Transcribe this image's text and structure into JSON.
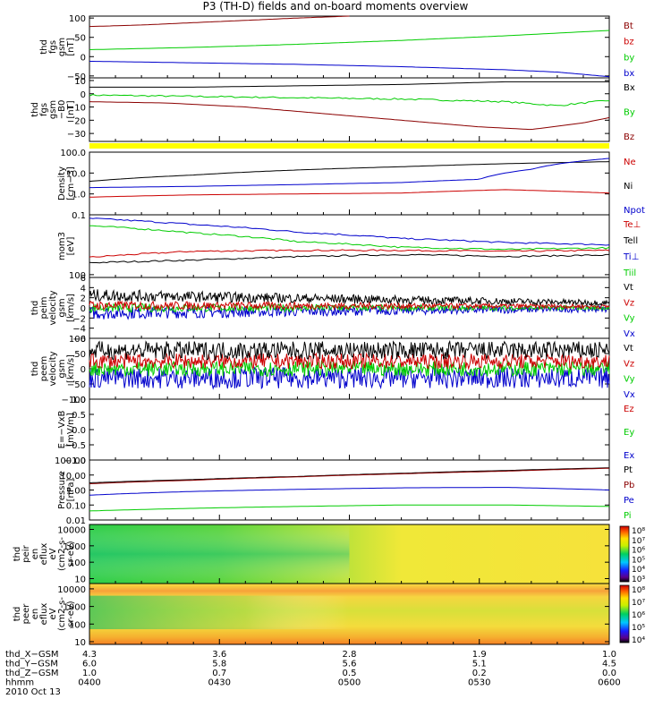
{
  "title": "P3 (TH-D) fields and on-board moments overview",
  "colors": {
    "black": "#000000",
    "red": "#cc0000",
    "darkred": "#8b0000",
    "green": "#00cc00",
    "blue": "#0000cc",
    "yellow": "#ffff00"
  },
  "chart_data": [
    {
      "type": "line",
      "id": "p1",
      "ylabel": [
        "thd",
        "fgs",
        "gsm",
        "[nT]"
      ],
      "ylim": [
        -55,
        105
      ],
      "ticks": [
        "100",
        "50",
        "0",
        "−50"
      ],
      "tickvals": [
        100,
        50,
        0,
        -50
      ],
      "series": [
        {
          "name": "Bt",
          "color": "#8b0000",
          "x": [
            0,
            0.1,
            0.2,
            0.3,
            0.4,
            0.5
          ],
          "values": [
            78,
            82,
            88,
            94,
            100,
            105
          ]
        },
        {
          "name": "bz",
          "color": "#cc0000",
          "x": [],
          "values": []
        },
        {
          "name": "by",
          "color": "#00cc00",
          "x": [
            0,
            0.2,
            0.4,
            0.6,
            0.8,
            1.0
          ],
          "values": [
            18,
            24,
            32,
            42,
            54,
            68
          ]
        },
        {
          "name": "bx",
          "color": "#0000cc",
          "x": [
            0,
            0.2,
            0.4,
            0.6,
            0.8,
            0.9,
            1.0
          ],
          "values": [
            -12,
            -16,
            -20,
            -26,
            -34,
            -40,
            -52
          ]
        }
      ]
    },
    {
      "type": "line",
      "id": "p2",
      "ylabel": [
        "thd",
        "fgs",
        "gsm",
        "−B0",
        "[nT]"
      ],
      "ylim": [
        -36,
        12
      ],
      "ticks": [
        "10",
        "0",
        "−10",
        "−20",
        "−30"
      ],
      "tickvals": [
        10,
        0,
        -10,
        -20,
        -30
      ],
      "series": [
        {
          "name": "Bx",
          "color": "#000000",
          "x": [
            0,
            0.2,
            0.4,
            0.6,
            0.8,
            1.0
          ],
          "values": [
            5,
            5,
            6,
            7,
            9,
            9
          ]
        },
        {
          "name": "By",
          "color": "#00cc00",
          "x": [
            0,
            0.2,
            0.4,
            0.6,
            0.8,
            0.9,
            1.0
          ],
          "values": [
            -1,
            -2,
            -3,
            -4,
            -6,
            -9,
            -5
          ]
        },
        {
          "name": "Bz",
          "color": "#8b0000",
          "x": [
            0,
            0.15,
            0.3,
            0.45,
            0.6,
            0.75,
            0.85,
            0.95,
            1.0
          ],
          "values": [
            -6,
            -7,
            -10,
            -15,
            -20,
            -25,
            -27,
            -22,
            -18
          ]
        }
      ]
    },
    {
      "type": "line",
      "id": "p3",
      "ylabel": [
        "Density",
        "[cm−3]"
      ],
      "log": true,
      "ylim": [
        0.1,
        100
      ],
      "ticks": [
        "100.0",
        "10.0",
        "1.0",
        "0.1"
      ],
      "tickvals": [
        100,
        10,
        1,
        0.1
      ],
      "series": [
        {
          "name": "Ne",
          "color": "#cc0000",
          "x": [
            0,
            0.2,
            0.4,
            0.6,
            0.8,
            1.0
          ],
          "values": [
            0.7,
            0.9,
            1.0,
            1.1,
            1.6,
            1.1
          ]
        },
        {
          "name": "Ni",
          "color": "#000000",
          "x": [
            0,
            0.2,
            0.4,
            0.6,
            0.8,
            1.0
          ],
          "values": [
            4,
            8,
            14,
            20,
            28,
            35
          ]
        },
        {
          "name": "Npot",
          "color": "#0000cc",
          "x": [
            0,
            0.2,
            0.4,
            0.6,
            0.75,
            0.85,
            1.0
          ],
          "values": [
            2,
            2.3,
            2.8,
            3.5,
            5,
            15,
            50
          ]
        }
      ]
    },
    {
      "type": "line",
      "id": "p4",
      "ylabel": [
        "mom3",
        "[eV]"
      ],
      "log": true,
      "ylim": [
        80,
        12000
      ],
      "ticks": [
        "100"
      ],
      "tickvals": [
        100
      ],
      "series": [
        {
          "name": "Te⊥",
          "color": "#cc0000",
          "x": [
            0,
            0.2,
            0.4,
            0.6,
            0.8,
            1.0
          ],
          "values": [
            400,
            650,
            700,
            700,
            650,
            700
          ]
        },
        {
          "name": "Tell",
          "color": "#000000",
          "x": [
            0,
            0.2,
            0.4,
            0.6,
            0.8,
            1.0
          ],
          "values": [
            260,
            320,
            420,
            500,
            430,
            480
          ]
        },
        {
          "name": "Ti⊥",
          "color": "#0000cc",
          "x": [
            0,
            0.2,
            0.4,
            0.6,
            0.8,
            1.0
          ],
          "values": [
            9000,
            5500,
            3000,
            1800,
            1300,
            1100
          ]
        },
        {
          "name": "Tiil",
          "color": "#00cc00",
          "x": [
            0,
            0.2,
            0.4,
            0.6,
            0.8,
            1.0
          ],
          "values": [
            5000,
            2800,
            1400,
            900,
            750,
            850
          ]
        }
      ]
    },
    {
      "type": "line",
      "id": "p5",
      "ylabel": [
        "thd",
        "peim",
        "velocity",
        "gsm",
        "[km/s]"
      ],
      "ylim": [
        -6,
        6
      ],
      "ticks": [
        "6",
        "4",
        "2",
        "0",
        "−2",
        "−4",
        "−6"
      ],
      "tickvals": [
        6,
        4,
        2,
        0,
        -2,
        -4,
        -6
      ],
      "series": [
        {
          "name": "Vt",
          "color": "#000000",
          "x": [
            0,
            1
          ],
          "values": [
            2.5,
            1
          ]
        },
        {
          "name": "Vz",
          "color": "#cc0000",
          "x": [
            0,
            1
          ],
          "values": [
            0.5,
            0.3
          ]
        },
        {
          "name": "Vy",
          "color": "#00cc00",
          "x": [
            0,
            1
          ],
          "values": [
            0,
            0
          ]
        },
        {
          "name": "Vx",
          "color": "#0000cc",
          "x": [
            0,
            1
          ],
          "values": [
            -1,
            -0.2
          ]
        }
      ]
    },
    {
      "type": "line",
      "id": "p6",
      "ylabel": [
        "thd",
        "peem",
        "velocity",
        "gsm",
        "[km/s]"
      ],
      "ylim": [
        -100,
        100
      ],
      "ticks": [
        "100",
        "50",
        "0",
        "−50",
        "−100"
      ],
      "tickvals": [
        100,
        50,
        0,
        -50,
        -100
      ],
      "series": [
        {
          "name": "Vt",
          "color": "#000000",
          "x": [
            0,
            1
          ],
          "values": [
            60,
            60
          ]
        },
        {
          "name": "Vz",
          "color": "#cc0000",
          "x": [
            0,
            1
          ],
          "values": [
            25,
            25
          ]
        },
        {
          "name": "Vy",
          "color": "#00cc00",
          "x": [
            0,
            1
          ],
          "values": [
            0,
            0
          ]
        },
        {
          "name": "Vx",
          "color": "#0000cc",
          "x": [
            0,
            1
          ],
          "values": [
            -30,
            -30
          ]
        }
      ]
    },
    {
      "type": "line",
      "id": "p7",
      "ylabel": [
        "E=−VxB",
        "[mV/m]"
      ],
      "ylim": [
        -1,
        1
      ],
      "ticks": [
        "1.0",
        "0.5",
        "0.0",
        "−0.5",
        "−1.0"
      ],
      "tickvals": [
        1,
        0.5,
        0,
        -0.5,
        -1
      ],
      "series": [
        {
          "name": "Ez",
          "color": "#cc0000",
          "x": [],
          "values": []
        },
        {
          "name": "Ey",
          "color": "#00cc00",
          "x": [],
          "values": []
        },
        {
          "name": "Ex",
          "color": "#0000cc",
          "x": [],
          "values": []
        }
      ]
    },
    {
      "type": "line",
      "id": "p8",
      "ylabel": [
        "Pressure",
        "[nPa]"
      ],
      "log": true,
      "ylim": [
        0.01,
        100
      ],
      "ticks": [
        "100.00",
        "10.00",
        "1.00",
        "0.10",
        "0.01"
      ],
      "tickvals": [
        100,
        10,
        1,
        0.1,
        0.01
      ],
      "series": [
        {
          "name": "Pt",
          "color": "#000000",
          "x": [
            0,
            0.2,
            0.4,
            0.6,
            0.8,
            1.0
          ],
          "values": [
            3,
            5,
            8,
            13,
            20,
            30
          ]
        },
        {
          "name": "Pb",
          "color": "#8b0000",
          "x": [
            0,
            0.2,
            0.4,
            0.6,
            0.8,
            1.0
          ],
          "values": [
            2.6,
            4.5,
            7.5,
            12,
            18,
            28
          ]
        },
        {
          "name": "Pe",
          "color": "#0000cc",
          "x": [
            0,
            0.2,
            0.4,
            0.6,
            0.8,
            1.0
          ],
          "values": [
            0.45,
            0.8,
            1.1,
            1.4,
            1.5,
            1.0
          ]
        },
        {
          "name": "Pi",
          "color": "#00cc00",
          "x": [
            0,
            0.2,
            0.4,
            0.6,
            0.8,
            1.0
          ],
          "values": [
            0.04,
            0.06,
            0.08,
            0.1,
            0.1,
            0.08
          ]
        }
      ]
    },
    {
      "type": "heatmap",
      "id": "p9",
      "ylabel": [
        "thd",
        "peir",
        "en",
        "eflux",
        "eV",
        "(cm2-s-",
        "sr-eV)"
      ],
      "log": true,
      "ylim": [
        5,
        20000
      ],
      "ticks": [
        "10000",
        "1000",
        "100",
        "10"
      ],
      "tickvals": [
        10000,
        1000,
        100,
        10
      ],
      "colorbar": {
        "ticks": [
          "10⁸",
          "10⁷",
          "10⁶",
          "10⁵",
          "10⁴",
          "10³"
        ]
      }
    },
    {
      "type": "heatmap",
      "id": "p10",
      "ylabel": [
        "thd",
        "peer",
        "en",
        "eflux",
        "eV",
        "(cm2-s-",
        "sr-eV)"
      ],
      "log": true,
      "ylim": [
        7,
        20000
      ],
      "ticks": [
        "10000",
        "1000",
        "100",
        "10"
      ],
      "tickvals": [
        10000,
        1000,
        100,
        10
      ],
      "colorbar": {
        "ticks": [
          "10⁸",
          "10⁷",
          "10⁶",
          "10⁵",
          "10⁴"
        ]
      }
    }
  ],
  "footer": {
    "row_labels": [
      "thd_X−GSM",
      "thd_Y−GSM",
      "thd_Z−GSM",
      "hhmm",
      "2010 Oct 13"
    ],
    "columns": [
      [
        "4.3",
        "6.0",
        "1.0",
        "0400"
      ],
      [
        "3.6",
        "5.8",
        "0.7",
        "0430"
      ],
      [
        "2.8",
        "5.6",
        "0.5",
        "0500"
      ],
      [
        "1.9",
        "5.1",
        "0.2",
        "0530"
      ],
      [
        "1.0",
        "4.5",
        "0.0",
        "0600"
      ]
    ]
  }
}
